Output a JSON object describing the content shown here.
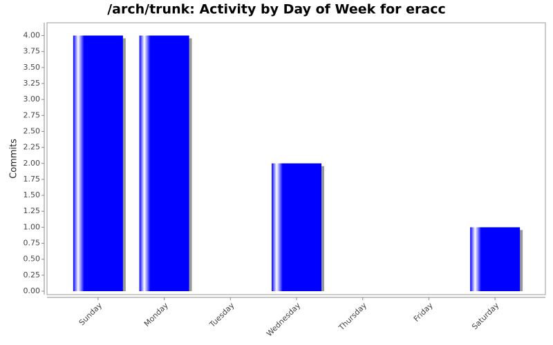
{
  "chart_data": {
    "type": "bar",
    "title": "/arch/trunk: Activity by Day of Week for eracc",
    "y_label": "Commits",
    "categories": [
      "Sunday",
      "Monday",
      "Tuesday",
      "Wednesday",
      "Thursday",
      "Friday",
      "Saturday"
    ],
    "values": [
      4,
      4,
      0,
      2,
      0,
      0,
      1
    ],
    "color": "#0000ff",
    "ylim": [
      0,
      4.2
    ],
    "yticks": [
      {
        "value": 0,
        "label": "0.00"
      },
      0.25,
      {
        "value": 0.5,
        "label": "0.50"
      },
      0.75,
      {
        "value": 1,
        "label": "1.00"
      },
      1.25,
      {
        "value": 1.5,
        "label": "1.50"
      },
      1.75,
      {
        "value": 2,
        "label": "2.00"
      },
      2.25,
      {
        "value": 2.5,
        "label": "2.50"
      },
      2.75,
      {
        "value": 3,
        "label": "3.00"
      },
      3.25,
      {
        "value": 3.5,
        "label": "3.50"
      },
      3.75,
      {
        "value": 4,
        "label": "4.00"
      }
    ],
    "grid": false
  }
}
